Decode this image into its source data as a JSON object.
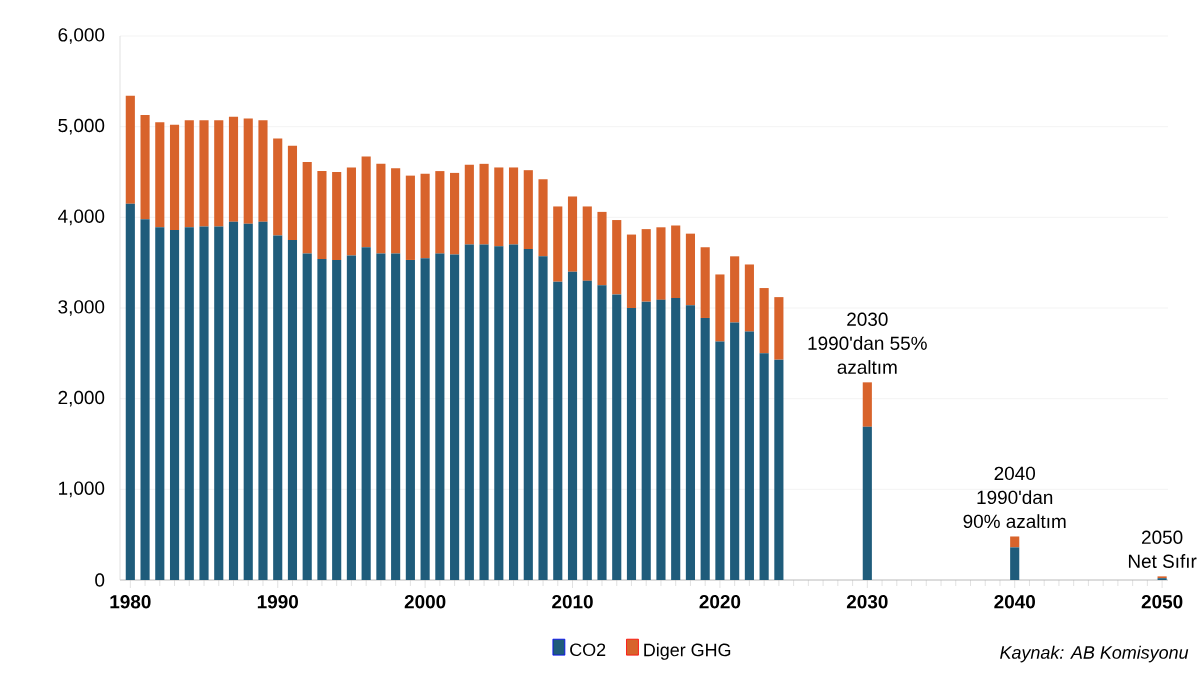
{
  "chart_data": {
    "type": "bar",
    "stacked": true,
    "x": [
      1980,
      1981,
      1982,
      1983,
      1984,
      1985,
      1986,
      1987,
      1988,
      1989,
      1990,
      1991,
      1992,
      1993,
      1994,
      1995,
      1996,
      1997,
      1998,
      1999,
      2000,
      2001,
      2002,
      2003,
      2004,
      2005,
      2006,
      2007,
      2008,
      2009,
      2010,
      2011,
      2012,
      2013,
      2014,
      2015,
      2016,
      2017,
      2018,
      2019,
      2020,
      2021,
      2022,
      2023,
      2024,
      2030,
      2040,
      2050
    ],
    "series": [
      {
        "name": "CO2",
        "color": "#1f5c7b",
        "values": [
          4150,
          3980,
          3890,
          3860,
          3890,
          3900,
          3900,
          3950,
          3930,
          3950,
          3800,
          3750,
          3600,
          3540,
          3530,
          3580,
          3670,
          3600,
          3600,
          3530,
          3550,
          3600,
          3590,
          3700,
          3700,
          3680,
          3700,
          3650,
          3570,
          3290,
          3400,
          3300,
          3250,
          3150,
          3000,
          3070,
          3090,
          3110,
          3030,
          2890,
          2630,
          2840,
          2740,
          2500,
          2430,
          1690,
          360,
          20
        ]
      },
      {
        "name": "Diger GHG",
        "color": "#d8632b",
        "values": [
          1190,
          1150,
          1160,
          1160,
          1180,
          1170,
          1170,
          1160,
          1160,
          1120,
          1070,
          1040,
          1010,
          970,
          970,
          970,
          1000,
          990,
          940,
          930,
          930,
          910,
          900,
          880,
          890,
          870,
          850,
          870,
          850,
          830,
          830,
          820,
          810,
          820,
          810,
          800,
          800,
          800,
          790,
          780,
          740,
          730,
          740,
          720,
          690,
          490,
          120,
          20
        ]
      }
    ],
    "xlim": [
      1979.3,
      2050.4
    ],
    "xticks": [
      1980,
      1990,
      2000,
      2010,
      2020,
      2030,
      2040,
      2050
    ],
    "ylim": [
      0,
      6000
    ],
    "yticks": [
      0,
      {
        "value": 1000,
        "label": "1,000"
      },
      {
        "value": 2000,
        "label": "2,000"
      },
      {
        "value": 3000,
        "label": "3,000"
      },
      {
        "value": 4000,
        "label": "4,000"
      },
      {
        "value": 5000,
        "label": "5,000"
      },
      {
        "value": 6000,
        "label": "6,000"
      }
    ],
    "grid": "y",
    "legend": "bottom",
    "annotations": [
      {
        "text": "2030",
        "x": 2030,
        "y": 2180
      },
      {
        "text": "1990'dan 55%",
        "x": 2030,
        "y": 2180
      },
      {
        "text": "azaltım",
        "x": 2030,
        "y": 2180
      },
      {
        "text": "2040",
        "x": 2040,
        "y": 480
      },
      {
        "text": "1990'dan",
        "x": 2040,
        "y": 480
      },
      {
        "text": "90% azaltım",
        "x": 2040,
        "y": 480
      },
      {
        "text": "2050",
        "x": 2050,
        "y": 40
      },
      {
        "text": "Net Sıfır",
        "x": 2050,
        "y": 40
      },
      "Kaynak: AB Komisyonu"
    ]
  }
}
